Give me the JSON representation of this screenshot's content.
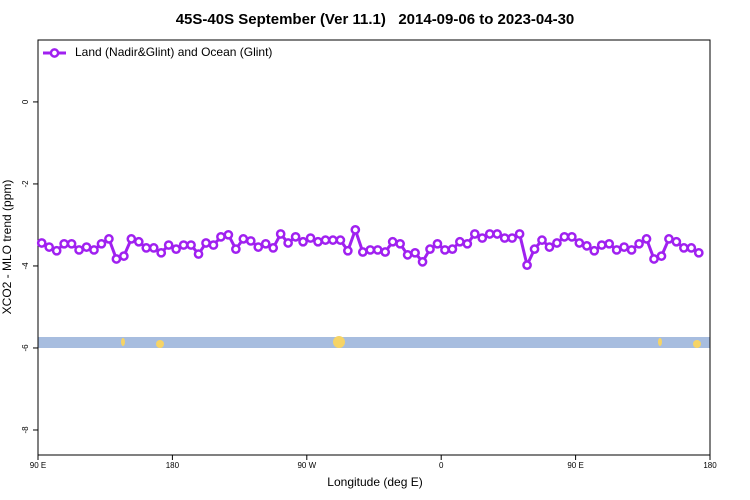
{
  "chart_data": {
    "type": "line",
    "title": "45S-40S September (Ver 11.1)   2014-09-06 to 2023-04-30",
    "xlabel": "Longitude (deg E)",
    "ylabel": "XCO2 - MLO trend (ppm)",
    "xlim": [
      90,
      540
    ],
    "ylim": [
      -8.61,
      1.51
    ],
    "xticks": [
      {
        "value": 90,
        "label": "90 E"
      },
      180,
      {
        "value": 270,
        "label": "90 W"
      },
      {
        "value": 360,
        "label": "0"
      },
      {
        "value": 450,
        "label": "90 E"
      },
      {
        "value": 540,
        "label": "180"
      }
    ],
    "yticks": [
      0,
      -2,
      -4,
      -6,
      -8
    ],
    "legend": "top-left",
    "x": [
      92.5,
      97.5,
      102.5,
      107.5,
      112.5,
      117.5,
      122.5,
      127.5,
      132.5,
      137.5,
      142.5,
      147.5,
      152.5,
      157.5,
      162.5,
      167.5,
      172.5,
      177.5,
      182.5,
      187.5,
      192.5,
      197.5,
      202.5,
      207.5,
      212.5,
      217.5,
      222.5,
      227.5,
      232.5,
      237.5,
      242.5,
      247.5,
      252.5,
      257.5,
      262.5,
      267.5,
      272.5,
      277.5,
      282.5,
      287.5,
      292.5,
      297.5,
      302.5,
      307.5,
      312.5,
      317.5,
      322.5,
      327.5,
      332.5,
      337.5,
      342.5,
      347.5,
      352.5,
      357.5,
      362.5,
      367.5,
      372.5,
      377.5,
      382.5,
      387.5,
      392.5,
      397.5,
      402.5,
      407.5,
      412.5,
      417.5,
      422.5,
      427.5,
      432.5,
      437.5,
      442.5,
      447.5,
      452.5,
      457.5,
      462.5,
      467.5,
      472.5,
      477.5,
      482.5,
      487.5,
      492.5,
      497.5,
      502.5,
      507.5,
      512.5,
      517.5,
      522.5,
      527.5,
      532.5
    ],
    "series": [
      {
        "name": "Land (Nadir&Glint) and Ocean (Glint)",
        "color": "#a020f0",
        "values": [
          -3.44,
          -3.54,
          -3.63,
          -3.46,
          -3.46,
          -3.61,
          -3.54,
          -3.61,
          -3.46,
          -3.34,
          -3.83,
          -3.76,
          -3.34,
          -3.41,
          -3.56,
          -3.56,
          -3.68,
          -3.49,
          -3.59,
          -3.49,
          -3.49,
          -3.71,
          -3.44,
          -3.49,
          -3.29,
          -3.24,
          -3.59,
          -3.34,
          -3.39,
          -3.54,
          -3.46,
          -3.56,
          -3.22,
          -3.44,
          -3.29,
          -3.41,
          -3.32,
          -3.41,
          -3.37,
          -3.37,
          -3.37,
          -3.63,
          -3.12,
          -3.66,
          -3.61,
          -3.61,
          -3.66,
          -3.41,
          -3.46,
          -3.73,
          -3.68,
          -3.9,
          -3.59,
          -3.46,
          -3.61,
          -3.59,
          -3.41,
          -3.46,
          -3.22,
          -3.32,
          -3.22,
          -3.22,
          -3.32,
          -3.32,
          -3.22,
          -3.98,
          -3.59,
          -3.37,
          -3.54,
          -3.44,
          -3.29,
          -3.29,
          -3.44,
          -3.51,
          -3.63,
          -3.49,
          -3.46,
          -3.61,
          -3.54,
          -3.61,
          -3.46,
          -3.34,
          -3.83,
          -3.76,
          -3.34,
          -3.41,
          -3.56,
          -3.56,
          -3.68
        ]
      }
    ]
  }
}
